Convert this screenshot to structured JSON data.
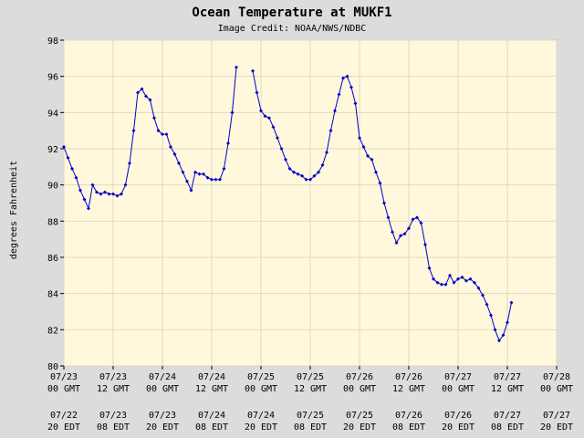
{
  "chart_data": {
    "type": "line",
    "title": "Ocean Temperature at MUKF1",
    "subtitle": "Image Credit: NOAA/NWS/NDBC",
    "ylabel": "degrees Fahrenheit",
    "xlabel": "",
    "ylim": [
      80,
      98
    ],
    "yticks": [
      "80",
      "82",
      "84",
      "86",
      "88",
      "90",
      "92",
      "94",
      "96",
      "98"
    ],
    "xticks_gmt": [
      [
        "07/23",
        "00 GMT"
      ],
      [
        "07/23",
        "12 GMT"
      ],
      [
        "07/24",
        "00 GMT"
      ],
      [
        "07/24",
        "12 GMT"
      ],
      [
        "07/25",
        "00 GMT"
      ],
      [
        "07/25",
        "12 GMT"
      ],
      [
        "07/26",
        "00 GMT"
      ],
      [
        "07/26",
        "12 GMT"
      ],
      [
        "07/27",
        "00 GMT"
      ],
      [
        "07/27",
        "12 GMT"
      ],
      [
        "07/28",
        "00 GMT"
      ]
    ],
    "xticks_edt": [
      [
        "07/22",
        "20 EDT"
      ],
      [
        "07/23",
        "08 EDT"
      ],
      [
        "07/23",
        "20 EDT"
      ],
      [
        "07/24",
        "08 EDT"
      ],
      [
        "07/24",
        "20 EDT"
      ],
      [
        "07/25",
        "08 EDT"
      ],
      [
        "07/25",
        "20 EDT"
      ],
      [
        "07/26",
        "08 EDT"
      ],
      [
        "07/26",
        "20 EDT"
      ],
      [
        "07/27",
        "08 EDT"
      ],
      [
        "07/27",
        "20 EDT"
      ]
    ],
    "x_unit": "hours after 07/23 00 GMT",
    "xlim": [
      0,
      120
    ],
    "grid": true,
    "colors": {
      "line": "#0000cc",
      "plot_bg": "#fff8dc",
      "page_bg": "#dcdcdc",
      "grid": "#e0d8c0"
    },
    "series": [
      {
        "name": "",
        "segments": [
          [
            [
              0,
              92.1
            ],
            [
              1,
              91.5
            ],
            [
              2,
              90.9
            ],
            [
              3,
              90.4
            ],
            [
              4,
              89.7
            ],
            [
              5,
              89.2
            ],
            [
              6,
              88.7
            ],
            [
              7,
              90.0
            ],
            [
              8,
              89.6
            ],
            [
              9,
              89.5
            ],
            [
              10,
              89.6
            ],
            [
              11,
              89.5
            ],
            [
              12,
              89.5
            ],
            [
              13,
              89.4
            ],
            [
              14,
              89.5
            ],
            [
              15,
              90.0
            ],
            [
              16,
              91.2
            ],
            [
              17,
              93.0
            ],
            [
              18,
              95.1
            ],
            [
              19,
              95.3
            ],
            [
              20,
              94.9
            ],
            [
              21,
              94.7
            ],
            [
              22,
              93.7
            ],
            [
              23,
              93.0
            ],
            [
              24,
              92.8
            ],
            [
              25,
              92.8
            ],
            [
              26,
              92.1
            ],
            [
              27,
              91.7
            ],
            [
              28,
              91.2
            ],
            [
              29,
              90.7
            ],
            [
              30,
              90.2
            ],
            [
              31,
              89.7
            ],
            [
              32,
              90.7
            ],
            [
              33,
              90.6
            ],
            [
              34,
              90.6
            ],
            [
              35,
              90.4
            ],
            [
              36,
              90.3
            ],
            [
              37,
              90.3
            ],
            [
              38,
              90.3
            ],
            [
              39,
              90.9
            ],
            [
              40,
              92.3
            ],
            [
              41,
              94.0
            ],
            [
              42,
              96.5
            ]
          ],
          [
            [
              46,
              96.3
            ],
            [
              47,
              95.1
            ],
            [
              48,
              94.1
            ],
            [
              49,
              93.8
            ],
            [
              50,
              93.7
            ],
            [
              51,
              93.2
            ],
            [
              52,
              92.6
            ],
            [
              53,
              92.0
            ],
            [
              54,
              91.4
            ],
            [
              55,
              90.9
            ],
            [
              56,
              90.7
            ],
            [
              57,
              90.6
            ],
            [
              58,
              90.5
            ],
            [
              59,
              90.3
            ],
            [
              60,
              90.3
            ],
            [
              61,
              90.5
            ],
            [
              62,
              90.7
            ],
            [
              63,
              91.1
            ],
            [
              64,
              91.8
            ],
            [
              65,
              93.0
            ],
            [
              66,
              94.1
            ],
            [
              67,
              95.0
            ],
            [
              68,
              95.9
            ],
            [
              69,
              96.0
            ],
            [
              70,
              95.4
            ],
            [
              71,
              94.5
            ],
            [
              72,
              92.6
            ],
            [
              73,
              92.1
            ],
            [
              74,
              91.6
            ],
            [
              75,
              91.4
            ],
            [
              76,
              90.7
            ],
            [
              77,
              90.1
            ],
            [
              78,
              89.0
            ],
            [
              79,
              88.2
            ],
            [
              80,
              87.4
            ],
            [
              81,
              86.8
            ],
            [
              82,
              87.2
            ],
            [
              83,
              87.3
            ],
            [
              84,
              87.6
            ],
            [
              85,
              88.1
            ],
            [
              86,
              88.2
            ],
            [
              87,
              87.9
            ],
            [
              88,
              86.7
            ],
            [
              89,
              85.4
            ],
            [
              90,
              84.8
            ],
            [
              91,
              84.6
            ],
            [
              92,
              84.5
            ],
            [
              93,
              84.5
            ],
            [
              94,
              85.0
            ],
            [
              95,
              84.6
            ],
            [
              96,
              84.8
            ],
            [
              97,
              84.9
            ],
            [
              98,
              84.7
            ],
            [
              99,
              84.8
            ],
            [
              100,
              84.6
            ],
            [
              101,
              84.3
            ],
            [
              102,
              83.9
            ],
            [
              103,
              83.4
            ],
            [
              104,
              82.8
            ],
            [
              105,
              82.0
            ],
            [
              106,
              81.4
            ],
            [
              107,
              81.7
            ],
            [
              108,
              82.4
            ],
            [
              109,
              83.5
            ]
          ]
        ]
      }
    ]
  }
}
